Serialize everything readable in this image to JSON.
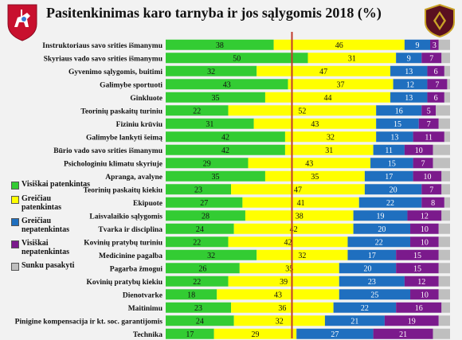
{
  "title": "Pasitenkinimas karo  tarnyba ir jos sąlygomis 2018 (%)",
  "icons": {
    "left_logo": "vytis-coat-of-arms-icon",
    "right_logo": "military-emblem-icon"
  },
  "colors": {
    "visiskai_patenkintas": "#33cc33",
    "greiciau_patenkintas": "#ffff00",
    "greiciau_nepatenkintas": "#1f6fbf",
    "visiskai_nepatenkintas": "#7b1a8c",
    "sunku_pasakyti": "#bfbfbf",
    "reference_line": "#c0392b"
  },
  "chart_data": {
    "type": "bar",
    "stacked": true,
    "orientation": "horizontal",
    "xlim": [
      0,
      100
    ],
    "categories": [
      "Instruktoriaus savo srities išmanymu",
      "Skyriaus vado savo srities išmanymu",
      "Gyvenimo sąlygomis, buitimi",
      "Galimybe sportuoti",
      "Ginkluote",
      "Teorinių paskaitų turiniu",
      "Fiziniu krūviu",
      "Galimybe lankyti šeimą",
      "Būrio vado savo srities išmanymu",
      "Psichologiniu klimatu skyriuje",
      "Apranga, avalyne",
      "Teorinių paskaitų kiekiu",
      "Ekipuote",
      "Laisvalaikio sąlygomis",
      "Tvarka ir disciplina",
      "Kovinių pratybų turiniu",
      "Medicinine pagalba",
      "Pagarba žmogui",
      "Kovinių pratybų kiekiu",
      "Dienotvarke",
      "Maitinimu",
      "Pinigine kompensacija ir kt. soc. garantijomis",
      "Technika"
    ],
    "series": [
      {
        "name": "Visiškai patenkintas",
        "values": [
          38,
          50,
          32,
          43,
          35,
          22,
          31,
          42,
          42,
          29,
          35,
          23,
          27,
          28,
          24,
          22,
          32,
          26,
          22,
          18,
          23,
          24,
          17
        ]
      },
      {
        "name": "Greičiau patenkintas",
        "values": [
          46,
          31,
          47,
          37,
          44,
          52,
          43,
          32,
          31,
          43,
          35,
          47,
          41,
          38,
          42,
          42,
          32,
          35,
          39,
          43,
          36,
          32,
          29
        ]
      },
      {
        "name": "Greičiau nepatenkintas",
        "values": [
          9,
          9,
          13,
          12,
          13,
          16,
          15,
          13,
          11,
          15,
          17,
          20,
          22,
          19,
          20,
          22,
          17,
          20,
          23,
          25,
          22,
          21,
          27
        ]
      },
      {
        "name": "Visiškai nepatenkintas",
        "values": [
          3,
          7,
          6,
          7,
          6,
          5,
          7,
          11,
          10,
          7,
          10,
          7,
          8,
          12,
          10,
          10,
          15,
          15,
          12,
          10,
          16,
          19,
          21
        ]
      },
      {
        "name": "Sunku pasakyti",
        "values": [
          4,
          3,
          2,
          1,
          2,
          5,
          4,
          2,
          6,
          6,
          3,
          3,
          2,
          3,
          4,
          4,
          4,
          4,
          4,
          4,
          3,
          4,
          6
        ]
      }
    ],
    "reference_line_x": 50,
    "data_labels": true,
    "legend": {
      "placement": "left",
      "labels": [
        "Visiškai patenkintas",
        "Greičiau patenkintas",
        "Greičiau nepatenkintas",
        "Visiškai nepatenkintas",
        "Sunku pasakyti"
      ]
    }
  }
}
